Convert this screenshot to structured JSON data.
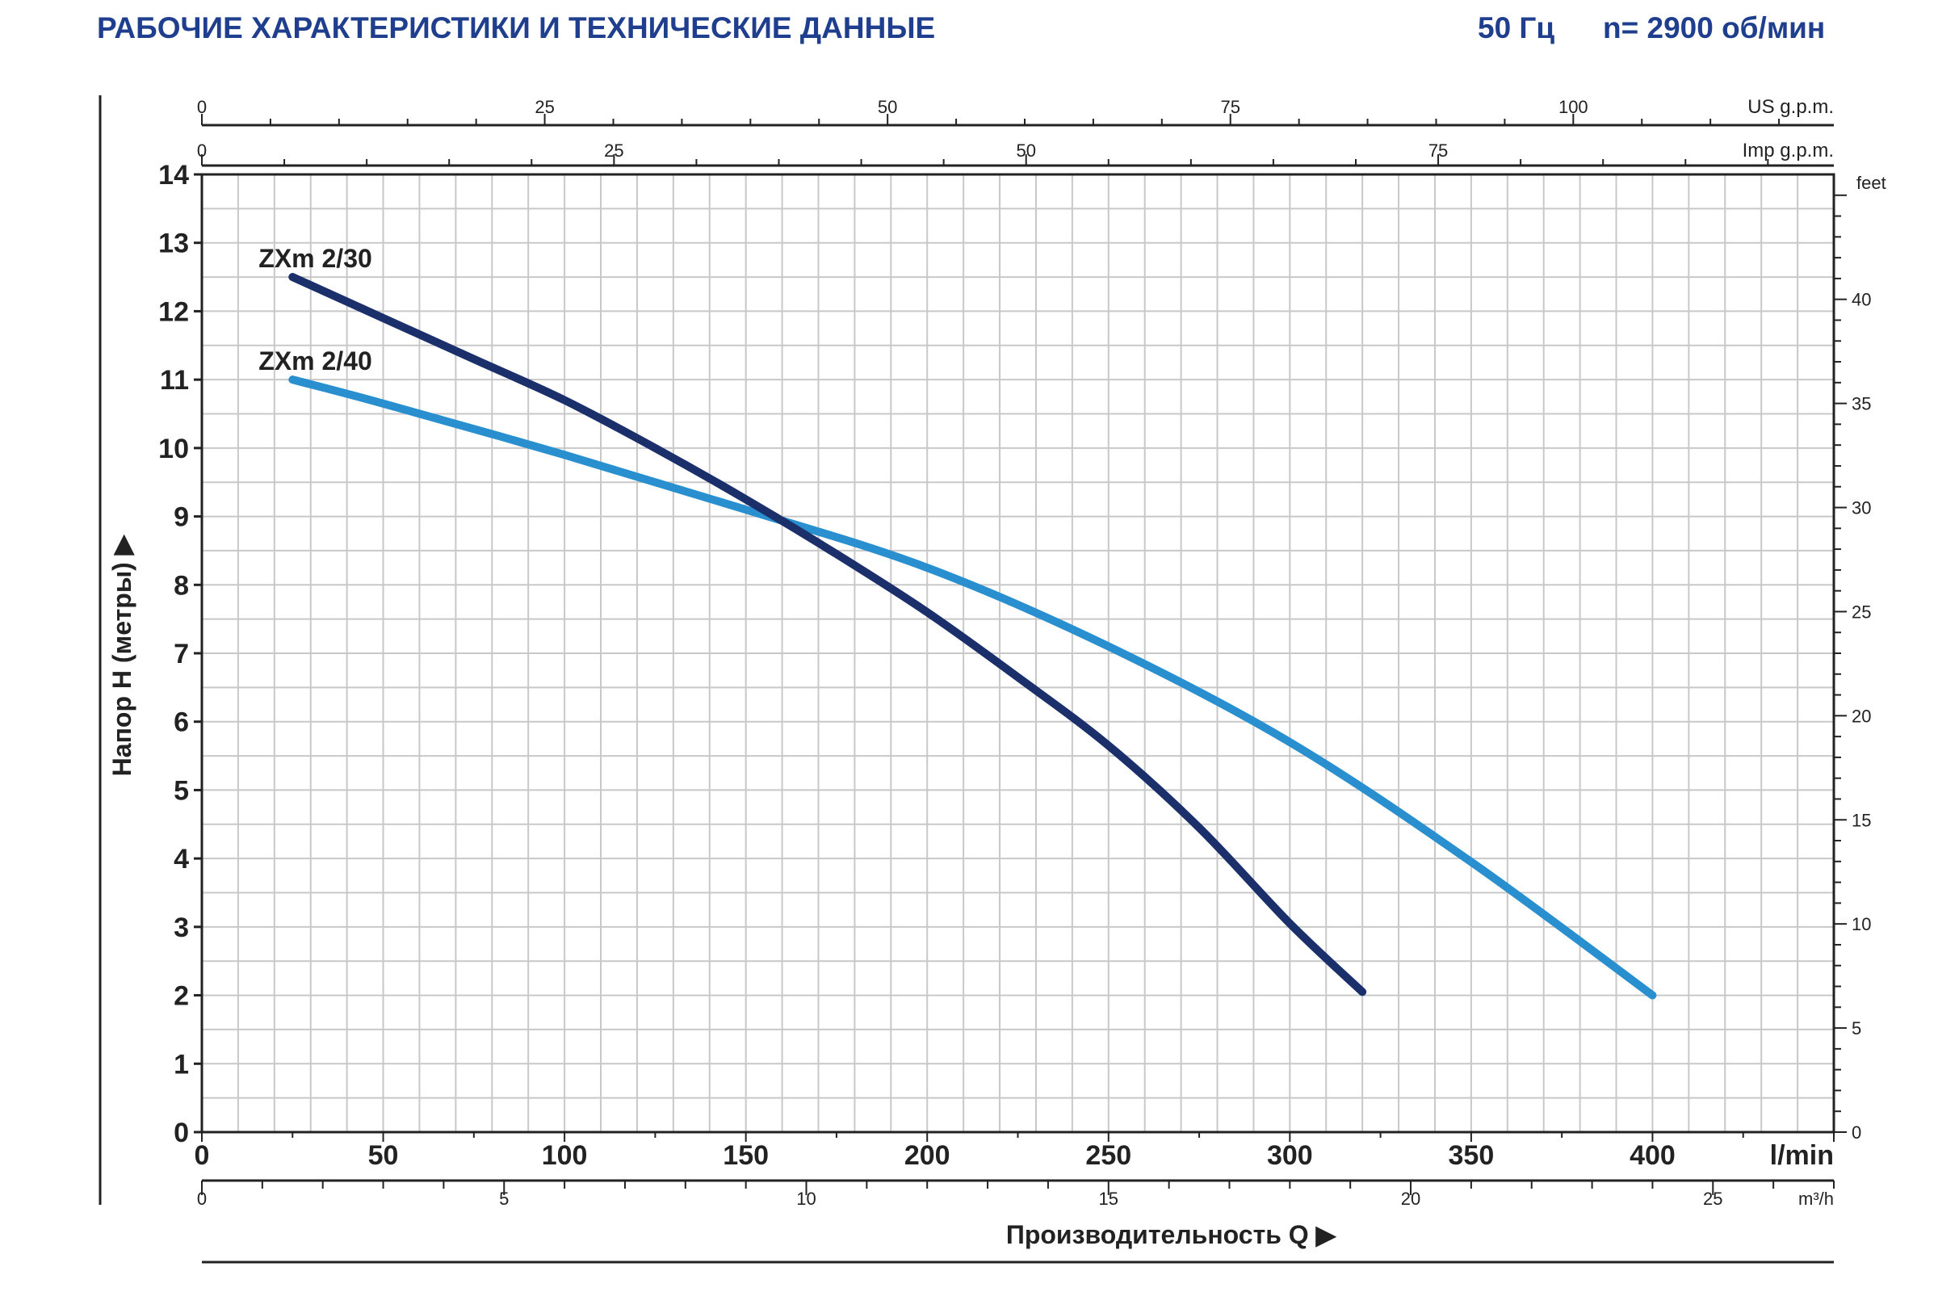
{
  "header": {
    "title": "РАБОЧИЕ ХАРАКТЕРИСТИКИ И ТЕХНИЧЕСКИЕ ДАННЫЕ",
    "frequency": "50 Гц",
    "speed": "n= 2900 об/мин"
  },
  "colors": {
    "title": "#1f3f8e",
    "grid": "#c8c8c8",
    "axis": "#222222",
    "series_dark": "#1b2f6b",
    "series_light": "#2a8fcf"
  },
  "chart_data": {
    "type": "line",
    "xlabel": "Производительность Q",
    "ylabel": "Напор H (метры)",
    "xlim": [
      0,
      450
    ],
    "ylim": [
      0,
      14
    ],
    "grid": true,
    "axes": {
      "x_main": {
        "unit": "l/min",
        "ticks": [
          0,
          50,
          100,
          150,
          200,
          250,
          300,
          350,
          400
        ]
      },
      "x_m3h": {
        "unit": "m³/h",
        "ticks": [
          0,
          5,
          10,
          15,
          20,
          25
        ],
        "range": [
          0,
          27
        ]
      },
      "x_us": {
        "unit": "US g.p.m.",
        "ticks": [
          0,
          25,
          50,
          75,
          100
        ],
        "range": [
          0,
          119
        ]
      },
      "x_imp": {
        "unit": "Imp g.p.m.",
        "ticks": [
          0,
          25,
          50,
          75
        ],
        "range": [
          0,
          99
        ]
      },
      "y_main": {
        "unit": "",
        "ticks": [
          0,
          1,
          2,
          3,
          4,
          5,
          6,
          7,
          8,
          9,
          10,
          11,
          12,
          13,
          14
        ]
      },
      "y_feet": {
        "unit": "feet",
        "ticks": [
          0,
          5,
          10,
          15,
          20,
          25,
          30,
          35,
          40
        ],
        "range": [
          0,
          46
        ]
      }
    },
    "series": [
      {
        "name": "ZXm 2/30",
        "color": "#1b2f6b",
        "x": [
          25,
          50,
          75,
          100,
          125,
          150,
          175,
          200,
          225,
          250,
          275,
          300,
          320
        ],
        "y": [
          12.5,
          11.9,
          11.3,
          10.7,
          10.0,
          9.25,
          8.45,
          7.6,
          6.65,
          5.65,
          4.45,
          3.05,
          2.05
        ]
      },
      {
        "name": "ZXm 2/40",
        "color": "#2a8fcf",
        "x": [
          25,
          50,
          100,
          150,
          200,
          250,
          300,
          350,
          400
        ],
        "y": [
          11.0,
          10.65,
          9.9,
          9.1,
          8.25,
          7.1,
          5.7,
          3.95,
          2.0
        ]
      }
    ]
  }
}
